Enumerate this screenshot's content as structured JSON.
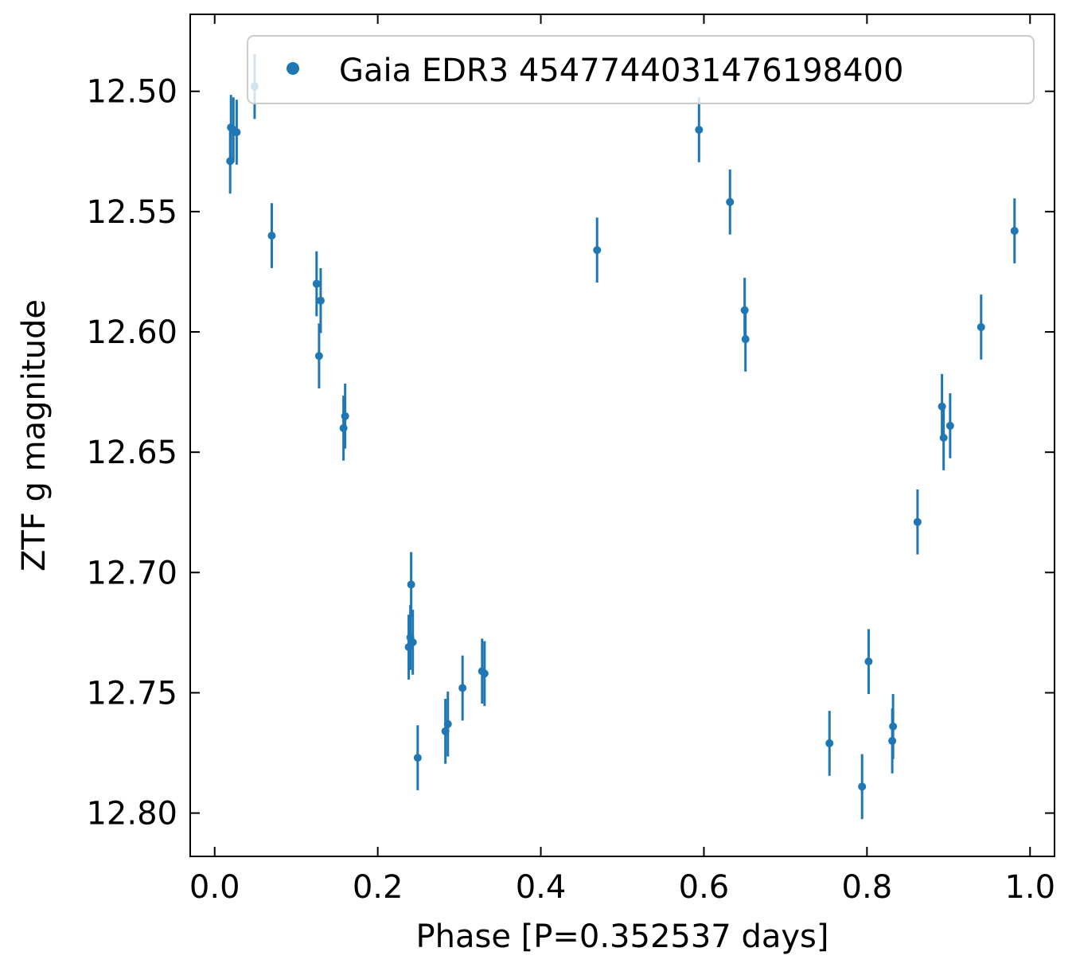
{
  "chart_data": {
    "type": "scatter",
    "xlabel": "Phase [P=0.352537 days]",
    "ylabel": "ZTF g magnitude",
    "xlim": [
      -0.03,
      1.03
    ],
    "ylim": [
      12.818,
      12.468
    ],
    "y_inverted": true,
    "grid": false,
    "legend_position": "top-right",
    "xticks": [
      {
        "value": 0.0,
        "label": "0.0"
      },
      {
        "value": 0.2,
        "label": "0.2"
      },
      {
        "value": 0.4,
        "label": "0.4"
      },
      {
        "value": 0.6,
        "label": "0.6"
      },
      {
        "value": 0.8,
        "label": "0.8"
      },
      {
        "value": 1.0,
        "label": "1.0"
      }
    ],
    "yticks": [
      {
        "value": 12.5,
        "label": "12.50"
      },
      {
        "value": 12.55,
        "label": "12.55"
      },
      {
        "value": 12.6,
        "label": "12.60"
      },
      {
        "value": 12.65,
        "label": "12.65"
      },
      {
        "value": 12.7,
        "label": "12.70"
      },
      {
        "value": 12.75,
        "label": "12.75"
      },
      {
        "value": 12.8,
        "label": "12.80"
      }
    ],
    "series": [
      {
        "name": "Gaia EDR3 4547744031476198400",
        "color": "#1f77b4",
        "error": 0.0135,
        "points": [
          {
            "x": 0.019,
            "y": 12.529
          },
          {
            "x": 0.02,
            "y": 12.515
          },
          {
            "x": 0.023,
            "y": 12.516
          },
          {
            "x": 0.027,
            "y": 12.517
          },
          {
            "x": 0.049,
            "y": 12.498
          },
          {
            "x": 0.07,
            "y": 12.56
          },
          {
            "x": 0.125,
            "y": 12.58
          },
          {
            "x": 0.128,
            "y": 12.61
          },
          {
            "x": 0.13,
            "y": 12.587
          },
          {
            "x": 0.158,
            "y": 12.64
          },
          {
            "x": 0.16,
            "y": 12.635
          },
          {
            "x": 0.238,
            "y": 12.731
          },
          {
            "x": 0.24,
            "y": 12.727
          },
          {
            "x": 0.241,
            "y": 12.705
          },
          {
            "x": 0.243,
            "y": 12.729
          },
          {
            "x": 0.249,
            "y": 12.777
          },
          {
            "x": 0.283,
            "y": 12.766
          },
          {
            "x": 0.286,
            "y": 12.763
          },
          {
            "x": 0.304,
            "y": 12.748
          },
          {
            "x": 0.328,
            "y": 12.741
          },
          {
            "x": 0.331,
            "y": 12.742
          },
          {
            "x": 0.469,
            "y": 12.566
          },
          {
            "x": 0.594,
            "y": 12.516
          },
          {
            "x": 0.632,
            "y": 12.546
          },
          {
            "x": 0.65,
            "y": 12.591
          },
          {
            "x": 0.651,
            "y": 12.603
          },
          {
            "x": 0.754,
            "y": 12.771
          },
          {
            "x": 0.794,
            "y": 12.789
          },
          {
            "x": 0.802,
            "y": 12.737
          },
          {
            "x": 0.831,
            "y": 12.77
          },
          {
            "x": 0.832,
            "y": 12.764
          },
          {
            "x": 0.862,
            "y": 12.679
          },
          {
            "x": 0.892,
            "y": 12.631
          },
          {
            "x": 0.894,
            "y": 12.644
          },
          {
            "x": 0.902,
            "y": 12.639
          },
          {
            "x": 0.94,
            "y": 12.598
          },
          {
            "x": 0.981,
            "y": 12.558
          }
        ]
      }
    ]
  }
}
